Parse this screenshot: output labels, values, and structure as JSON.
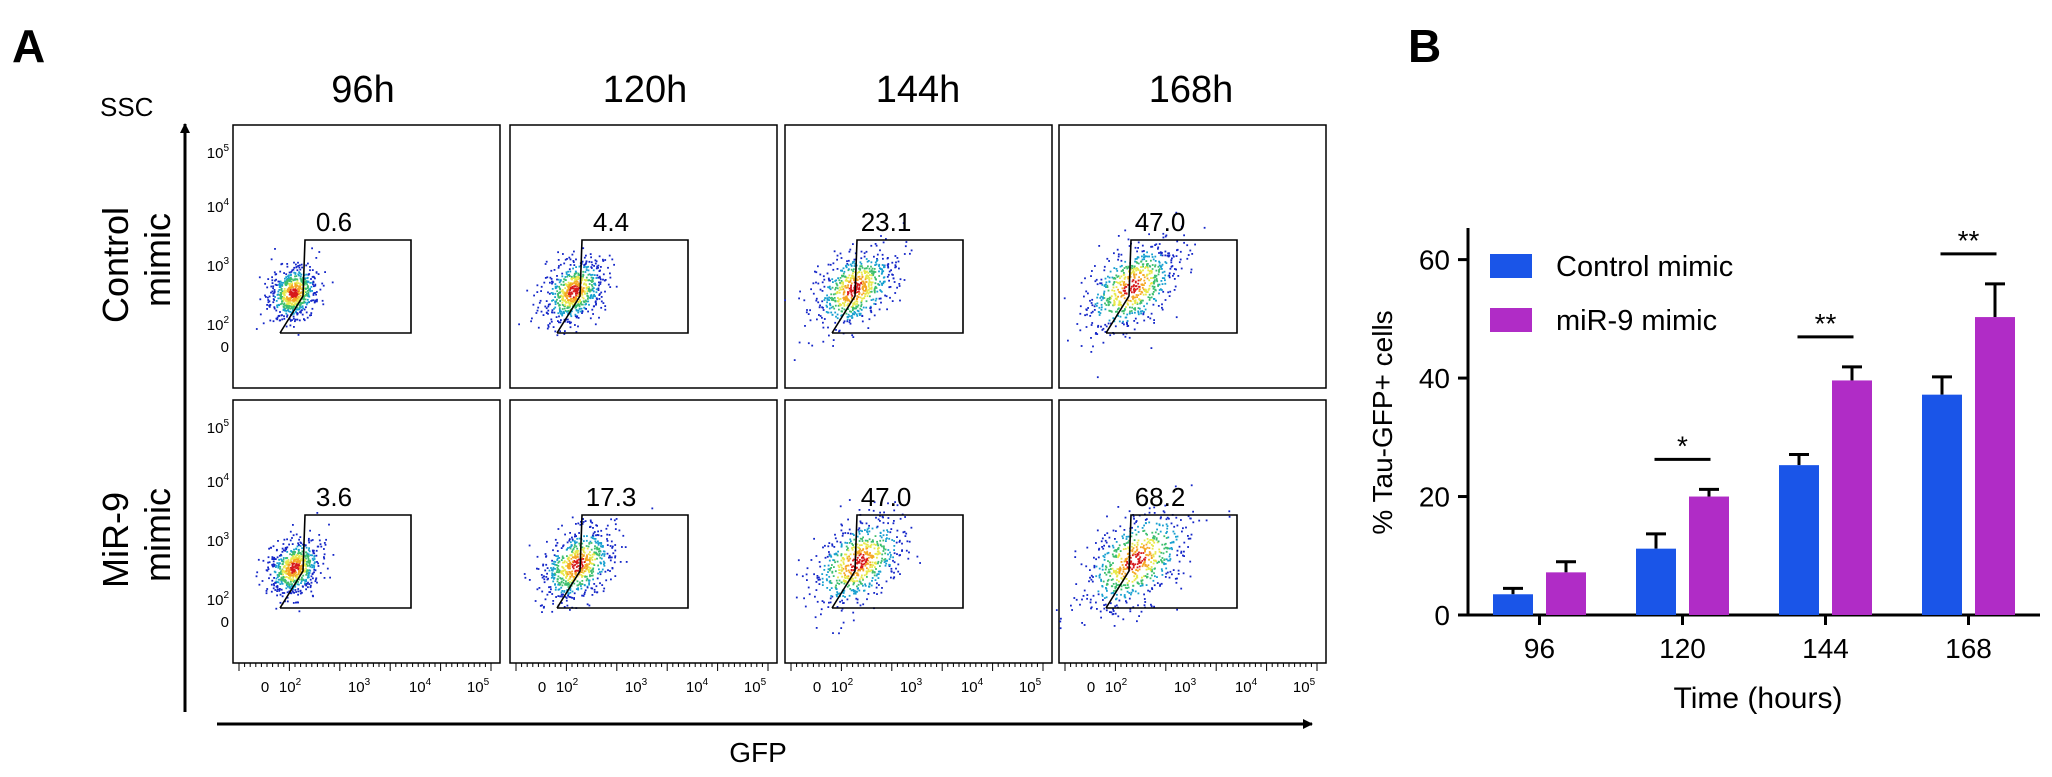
{
  "panel_a": {
    "label": "A",
    "y_axis_label": "SSC",
    "x_axis_label": "GFP",
    "columns": [
      "96h",
      "120h",
      "144h",
      "168h"
    ],
    "rows": [
      {
        "label_line1": "Control",
        "label_line2": "mimic",
        "gate_percent": [
          "0.6",
          "4.4",
          "23.1",
          "47.0"
        ],
        "spread": [
          0.1,
          0.3,
          0.6,
          0.8
        ]
      },
      {
        "label_line1": "MiR-9",
        "label_line2": "mimic",
        "gate_percent": [
          "3.6",
          "17.3",
          "47.0",
          "68.2"
        ],
        "spread": [
          0.15,
          0.5,
          0.8,
          1.0
        ]
      }
    ],
    "y_ticks": [
      {
        "base": "10",
        "exp": "5"
      },
      {
        "base": "10",
        "exp": "4"
      },
      {
        "base": "10",
        "exp": "3"
      },
      {
        "base": "10",
        "exp": "2"
      },
      {
        "base": "0",
        "exp": ""
      }
    ],
    "x_ticks": [
      {
        "base": "0",
        "exp": ""
      },
      {
        "base": "10",
        "exp": "2"
      },
      {
        "base": "10",
        "exp": "3"
      },
      {
        "base": "10",
        "exp": "4"
      },
      {
        "base": "10",
        "exp": "5"
      }
    ]
  },
  "chart_data": {
    "type": "bar",
    "panel_label": "B",
    "title": "",
    "xlabel": "Time (hours)",
    "ylabel": "% Tau-GFP+ cells",
    "categories": [
      "96",
      "120",
      "144",
      "168"
    ],
    "ylim": [
      0,
      65
    ],
    "yticks": [
      0,
      20,
      40,
      60
    ],
    "legend_position": "top-left",
    "series": [
      {
        "name": "Control mimic",
        "color": "#1a55e8",
        "values": [
          3.5,
          11.2,
          25.3,
          37.2
        ],
        "errors": [
          1.0,
          2.5,
          1.8,
          3.0
        ]
      },
      {
        "name": "miR-9 mimic",
        "color": "#b02cc6",
        "values": [
          7.2,
          20.0,
          39.6,
          50.3
        ],
        "errors": [
          1.8,
          1.2,
          2.3,
          5.6
        ]
      }
    ],
    "significance": [
      {
        "category": "120",
        "label": "*"
      },
      {
        "category": "144",
        "label": "**"
      },
      {
        "category": "168",
        "label": "**"
      }
    ]
  }
}
